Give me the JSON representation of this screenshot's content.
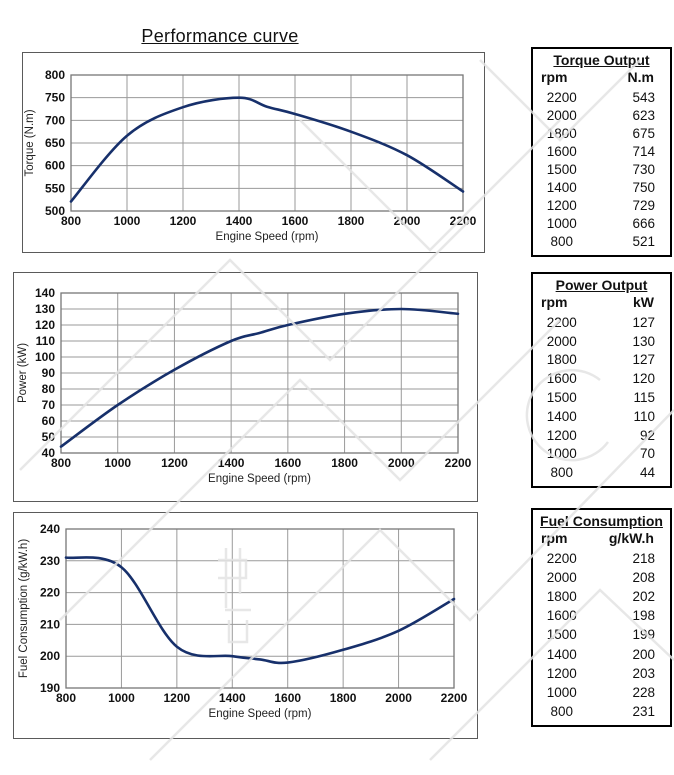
{
  "page": {
    "title": "Performance curve"
  },
  "colors": {
    "curve": "#17306b",
    "grid": "#9a9a9a",
    "box_border": "#5a5a5a",
    "table_border": "#000000",
    "watermark": "#e3e3e3"
  },
  "chart_data": [
    {
      "id": "torque",
      "type": "line",
      "title": "",
      "xlabel": "Engine Speed (rpm)",
      "ylabel": "Torque (N.m)",
      "x": [
        800,
        1000,
        1200,
        1400,
        1500,
        1600,
        1800,
        2000,
        2200
      ],
      "y": [
        521,
        666,
        729,
        750,
        730,
        714,
        675,
        623,
        543
      ],
      "xlim": [
        800,
        2200
      ],
      "ylim": [
        500,
        800
      ],
      "ystep": 50,
      "xticks": [
        800,
        1000,
        1200,
        1400,
        1600,
        1800,
        2000,
        2200
      ],
      "grid": true,
      "legend": "none",
      "line_color": "#17306b"
    },
    {
      "id": "power",
      "type": "line",
      "title": "",
      "xlabel": "Engine Speed (rpm)",
      "ylabel": "Power (kW)",
      "x": [
        800,
        1000,
        1200,
        1400,
        1500,
        1600,
        1800,
        2000,
        2200
      ],
      "y": [
        44,
        70,
        92,
        110,
        115,
        120,
        127,
        130,
        127
      ],
      "xlim": [
        800,
        2200
      ],
      "ylim": [
        40,
        140
      ],
      "ystep": 10,
      "xticks": [
        800,
        1000,
        1200,
        1400,
        1600,
        1800,
        2000,
        2200
      ],
      "grid": true,
      "legend": "none",
      "line_color": "#17306b"
    },
    {
      "id": "fuel",
      "type": "line",
      "title": "",
      "xlabel": "Engine Speed (rpm)",
      "ylabel": "Fuel Consumption (g/kW.h)",
      "x": [
        800,
        1000,
        1200,
        1400,
        1500,
        1600,
        1800,
        2000,
        2200
      ],
      "y": [
        231,
        228,
        203,
        200,
        199,
        198,
        202,
        208,
        218
      ],
      "xlim": [
        800,
        2200
      ],
      "ylim": [
        190,
        240
      ],
      "ystep": 10,
      "xticks": [
        800,
        1000,
        1200,
        1400,
        1600,
        1800,
        2000,
        2200
      ],
      "grid": true,
      "legend": "none",
      "line_color": "#17306b"
    }
  ],
  "tables": [
    {
      "title": "Torque Output",
      "col1": "rpm",
      "col2": "N.m",
      "rows": [
        [
          2200,
          543
        ],
        [
          2000,
          623
        ],
        [
          1800,
          675
        ],
        [
          1600,
          714
        ],
        [
          1500,
          730
        ],
        [
          1400,
          750
        ],
        [
          1200,
          729
        ],
        [
          1000,
          666
        ],
        [
          800,
          521
        ]
      ]
    },
    {
      "title": "Power Output",
      "col1": "rpm",
      "col2": "kW",
      "rows": [
        [
          2200,
          127
        ],
        [
          2000,
          130
        ],
        [
          1800,
          127
        ],
        [
          1600,
          120
        ],
        [
          1500,
          115
        ],
        [
          1400,
          110
        ],
        [
          1200,
          92
        ],
        [
          1000,
          70
        ],
        [
          800,
          44
        ]
      ]
    },
    {
      "title": "Fuel Consumption",
      "col1": "rpm",
      "col2": "g/kW.h",
      "rows": [
        [
          2200,
          218
        ],
        [
          2000,
          208
        ],
        [
          1800,
          202
        ],
        [
          1600,
          198
        ],
        [
          1500,
          199
        ],
        [
          1400,
          200
        ],
        [
          1200,
          203
        ],
        [
          1000,
          228
        ],
        [
          800,
          231
        ]
      ]
    }
  ]
}
